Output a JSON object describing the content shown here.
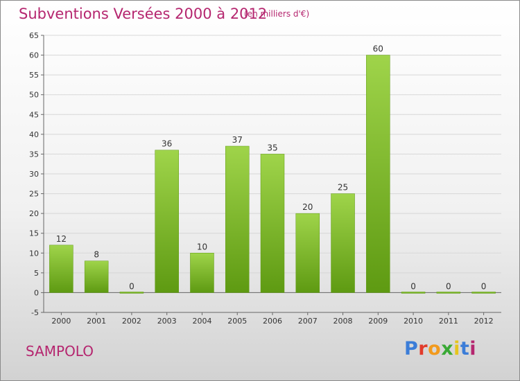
{
  "header": {
    "title": "Subventions Versées 2000 à 2012",
    "subtitle": "(en milliers d'€)"
  },
  "footer": {
    "commune": "SAMPOLO",
    "logo_letters": [
      "P",
      "r",
      "o",
      "x",
      "i",
      "t",
      "i"
    ]
  },
  "colors": {
    "title": "#b5266f",
    "bar_top": "#9fd44a",
    "bar_bottom": "#5e9a12"
  },
  "chart_data": {
    "type": "bar",
    "title": "Subventions Versées 2000 à 2012",
    "subtitle": "(en milliers d'€)",
    "xlabel": "",
    "ylabel": "",
    "categories": [
      "2000",
      "2001",
      "2002",
      "2003",
      "2004",
      "2005",
      "2006",
      "2007",
      "2008",
      "2009",
      "2010",
      "2011",
      "2012"
    ],
    "values": [
      12,
      8,
      0,
      36,
      10,
      37,
      35,
      20,
      25,
      60,
      0,
      0,
      0
    ],
    "ylim": [
      -5,
      65
    ],
    "yticks": [
      -5,
      0,
      5,
      10,
      15,
      20,
      25,
      30,
      35,
      40,
      45,
      50,
      55,
      60,
      65
    ],
    "grid": true,
    "legend": "none"
  }
}
